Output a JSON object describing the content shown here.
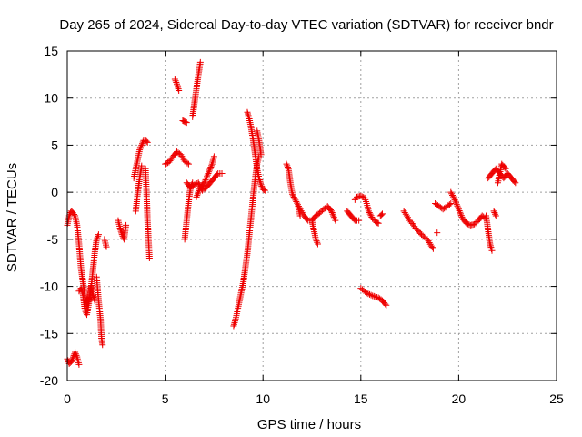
{
  "chart_data": {
    "type": "scatter",
    "title": "Day 265 of 2024, Sidereal Day-to-day VTEC variation (SDTVAR) for receiver bndr",
    "xlabel": "GPS time / hours",
    "ylabel": "SDTVAR / TECUs",
    "xlim": [
      0,
      25
    ],
    "ylim": [
      -20,
      15
    ],
    "xticks": [
      0,
      5,
      10,
      15,
      20,
      25
    ],
    "yticks": [
      -20,
      -15,
      -10,
      -5,
      0,
      5,
      10,
      15
    ],
    "grid": true,
    "marker": "+",
    "color": "#ee0000",
    "series": [
      {
        "segments": [
          [
            [
              0.0,
              -3.5
            ],
            [
              0.1,
              -2.5
            ],
            [
              0.2,
              -2.0
            ],
            [
              0.3,
              -2.2
            ],
            [
              0.4,
              -2.5
            ],
            [
              0.5,
              -3.5
            ],
            [
              0.6,
              -5.5
            ],
            [
              0.7,
              -8.0
            ],
            [
              0.8,
              -9.5
            ],
            [
              0.9,
              -11.0
            ],
            [
              1.0,
              -12.0
            ],
            [
              1.1,
              -11.5
            ],
            [
              1.2,
              -10.5
            ],
            [
              1.3,
              -8.5
            ],
            [
              1.4,
              -6.5
            ],
            [
              1.5,
              -5.0
            ],
            [
              1.6,
              -4.5
            ]
          ],
          [
            [
              0.0,
              -17.7
            ],
            [
              0.1,
              -18.2
            ],
            [
              0.2,
              -18.0
            ],
            [
              0.3,
              -17.5
            ],
            [
              0.4,
              -17.0
            ],
            [
              0.5,
              -17.5
            ],
            [
              0.6,
              -18.3
            ]
          ],
          [
            [
              0.6,
              -10.5
            ],
            [
              0.7,
              -10.2
            ],
            [
              0.8,
              -10.8
            ],
            [
              0.9,
              -12.5
            ],
            [
              1.0,
              -13.0
            ],
            [
              1.1,
              -11.8
            ],
            [
              1.2,
              -10.0
            ],
            [
              1.3,
              -10.8
            ],
            [
              1.4,
              -11.5
            ]
          ],
          [
            [
              1.5,
              -9.0
            ],
            [
              1.6,
              -11.5
            ],
            [
              1.7,
              -13.5
            ],
            [
              1.75,
              -15.5
            ],
            [
              1.8,
              -16.2
            ]
          ],
          [
            [
              1.9,
              -5.0
            ],
            [
              2.0,
              -5.8
            ]
          ],
          [
            [
              2.6,
              -3.0
            ],
            [
              2.7,
              -3.8
            ],
            [
              2.8,
              -4.5
            ],
            [
              2.9,
              -5.0
            ],
            [
              3.0,
              -3.5
            ]
          ],
          [
            [
              3.4,
              1.5
            ],
            [
              3.5,
              2.5
            ],
            [
              3.6,
              3.5
            ],
            [
              3.7,
              4.5
            ],
            [
              3.8,
              5.0
            ],
            [
              3.9,
              5.5
            ],
            [
              4.0,
              5.5
            ],
            [
              4.1,
              5.3
            ]
          ],
          [
            [
              3.5,
              -2.0
            ],
            [
              3.6,
              0.0
            ],
            [
              3.7,
              1.5
            ],
            [
              3.8,
              2.8
            ]
          ],
          [
            [
              4.0,
              2.5
            ],
            [
              4.05,
              0.0
            ],
            [
              4.1,
              -3.0
            ],
            [
              4.15,
              -5.0
            ],
            [
              4.2,
              -7.0
            ]
          ],
          [
            [
              5.0,
              3.0
            ],
            [
              5.2,
              3.2
            ],
            [
              5.4,
              3.8
            ],
            [
              5.6,
              4.3
            ],
            [
              5.8,
              4.0
            ],
            [
              6.0,
              3.3
            ],
            [
              6.2,
              3.0
            ]
          ],
          [
            [
              5.5,
              12.0
            ],
            [
              5.6,
              11.5
            ],
            [
              5.7,
              10.8
            ]
          ],
          [
            [
              5.9,
              7.6
            ],
            [
              6.0,
              7.5
            ],
            [
              6.1,
              7.4
            ]
          ],
          [
            [
              6.0,
              -5.0
            ],
            [
              6.1,
              -3.0
            ],
            [
              6.2,
              -1.0
            ],
            [
              6.3,
              0.5
            ],
            [
              6.4,
              1.0
            ]
          ],
          [
            [
              6.1,
              1.0
            ],
            [
              6.3,
              0.5
            ],
            [
              6.5,
              0.8
            ],
            [
              6.7,
              1.0
            ],
            [
              6.9,
              0.2
            ],
            [
              7.1,
              0.5
            ],
            [
              7.3,
              1.0
            ],
            [
              7.5,
              1.5
            ],
            [
              7.7,
              2.0
            ],
            [
              7.9,
              2.0
            ]
          ],
          [
            [
              6.4,
              8.0
            ],
            [
              6.5,
              9.5
            ],
            [
              6.6,
              11.0
            ],
            [
              6.7,
              12.5
            ],
            [
              6.8,
              13.8
            ]
          ],
          [
            [
              6.6,
              -0.5
            ],
            [
              6.8,
              0.5
            ],
            [
              7.0,
              1.0
            ],
            [
              7.2,
              2.0
            ],
            [
              7.4,
              3.0
            ],
            [
              7.5,
              3.8
            ]
          ],
          [
            [
              8.5,
              -14.2
            ],
            [
              8.6,
              -13.5
            ],
            [
              8.7,
              -12.5
            ],
            [
              8.8,
              -11.5
            ],
            [
              8.9,
              -10.5
            ],
            [
              9.0,
              -9.5
            ],
            [
              9.1,
              -8.0
            ],
            [
              9.2,
              -6.5
            ],
            [
              9.3,
              -4.5
            ],
            [
              9.4,
              -2.5
            ],
            [
              9.5,
              -0.5
            ],
            [
              9.6,
              1.5
            ],
            [
              9.7,
              3.0
            ],
            [
              9.8,
              3.8
            ]
          ],
          [
            [
              9.2,
              8.5
            ],
            [
              9.3,
              7.8
            ],
            [
              9.4,
              6.8
            ],
            [
              9.5,
              5.5
            ],
            [
              9.6,
              4.0
            ],
            [
              9.7,
              2.5
            ],
            [
              9.8,
              1.5
            ],
            [
              9.9,
              0.8
            ],
            [
              10.0,
              0.3
            ],
            [
              10.1,
              0.2
            ]
          ],
          [
            [
              9.7,
              6.5
            ],
            [
              9.8,
              5.5
            ],
            [
              9.9,
              4.0
            ]
          ],
          [
            [
              11.2,
              3.0
            ],
            [
              11.3,
              2.5
            ],
            [
              11.4,
              1.0
            ],
            [
              11.5,
              -0.2
            ],
            [
              11.7,
              -1.0
            ],
            [
              11.9,
              -1.8
            ],
            [
              12.1,
              -2.5
            ],
            [
              12.3,
              -3.0
            ],
            [
              12.5,
              -3.0
            ],
            [
              12.7,
              -2.5
            ],
            [
              12.9,
              -2.2
            ],
            [
              13.1,
              -1.8
            ],
            [
              13.3,
              -1.5
            ],
            [
              13.5,
              -2.0
            ],
            [
              13.7,
              -3.0
            ]
          ],
          [
            [
              11.8,
              -1.5
            ],
            [
              11.9,
              -2.5
            ]
          ],
          [
            [
              12.5,
              -3.0
            ],
            [
              12.6,
              -4.0
            ],
            [
              12.7,
              -5.0
            ],
            [
              12.8,
              -5.5
            ]
          ],
          [
            [
              14.3,
              -2.0
            ],
            [
              14.5,
              -2.5
            ],
            [
              14.7,
              -3.0
            ],
            [
              14.9,
              -3.0
            ]
          ],
          [
            [
              14.7,
              -0.8
            ],
            [
              14.8,
              -0.5
            ],
            [
              15.0,
              -0.4
            ],
            [
              15.2,
              -0.6
            ],
            [
              15.3,
              -1.2
            ],
            [
              15.4,
              -2.0
            ],
            [
              15.6,
              -2.8
            ],
            [
              15.8,
              -3.2
            ],
            [
              15.9,
              -3.3
            ]
          ],
          [
            [
              15.0,
              -10.2
            ],
            [
              15.3,
              -10.7
            ],
            [
              15.6,
              -11.0
            ],
            [
              15.9,
              -11.2
            ],
            [
              16.1,
              -11.5
            ],
            [
              16.3,
              -12.0
            ]
          ],
          [
            [
              16.0,
              -2.5
            ],
            [
              16.1,
              -2.3
            ]
          ],
          [
            [
              17.2,
              -2.0
            ],
            [
              17.5,
              -3.0
            ],
            [
              17.8,
              -3.8
            ],
            [
              18.1,
              -4.5
            ],
            [
              18.4,
              -5.0
            ],
            [
              18.6,
              -5.7
            ],
            [
              18.7,
              -6.0
            ]
          ],
          [
            [
              18.8,
              -1.2
            ],
            [
              19.0,
              -1.5
            ],
            [
              19.2,
              -1.8
            ],
            [
              19.4,
              -1.5
            ],
            [
              19.6,
              -1.2
            ]
          ],
          [
            [
              18.9,
              -4.3
            ]
          ],
          [
            [
              19.6,
              0.0
            ],
            [
              19.8,
              -0.8
            ],
            [
              20.0,
              -1.8
            ],
            [
              20.2,
              -2.8
            ],
            [
              20.4,
              -3.3
            ],
            [
              20.6,
              -3.5
            ],
            [
              20.8,
              -3.4
            ],
            [
              21.0,
              -3.0
            ],
            [
              21.2,
              -2.5
            ],
            [
              21.4,
              -2.8
            ]
          ],
          [
            [
              21.4,
              -2.5
            ],
            [
              21.5,
              -4.0
            ],
            [
              21.6,
              -5.5
            ],
            [
              21.7,
              -6.2
            ]
          ],
          [
            [
              21.8,
              -2.0
            ],
            [
              21.9,
              -2.5
            ]
          ],
          [
            [
              21.5,
              1.5
            ],
            [
              21.7,
              2.0
            ],
            [
              21.9,
              2.5
            ],
            [
              22.1,
              2.0
            ],
            [
              22.3,
              1.5
            ],
            [
              22.5,
              2.0
            ],
            [
              22.7,
              1.5
            ],
            [
              22.9,
              1.0
            ]
          ],
          [
            [
              22.0,
              1.0
            ],
            [
              22.2,
              3.0
            ],
            [
              22.4,
              2.5
            ]
          ]
        ]
      }
    ]
  }
}
